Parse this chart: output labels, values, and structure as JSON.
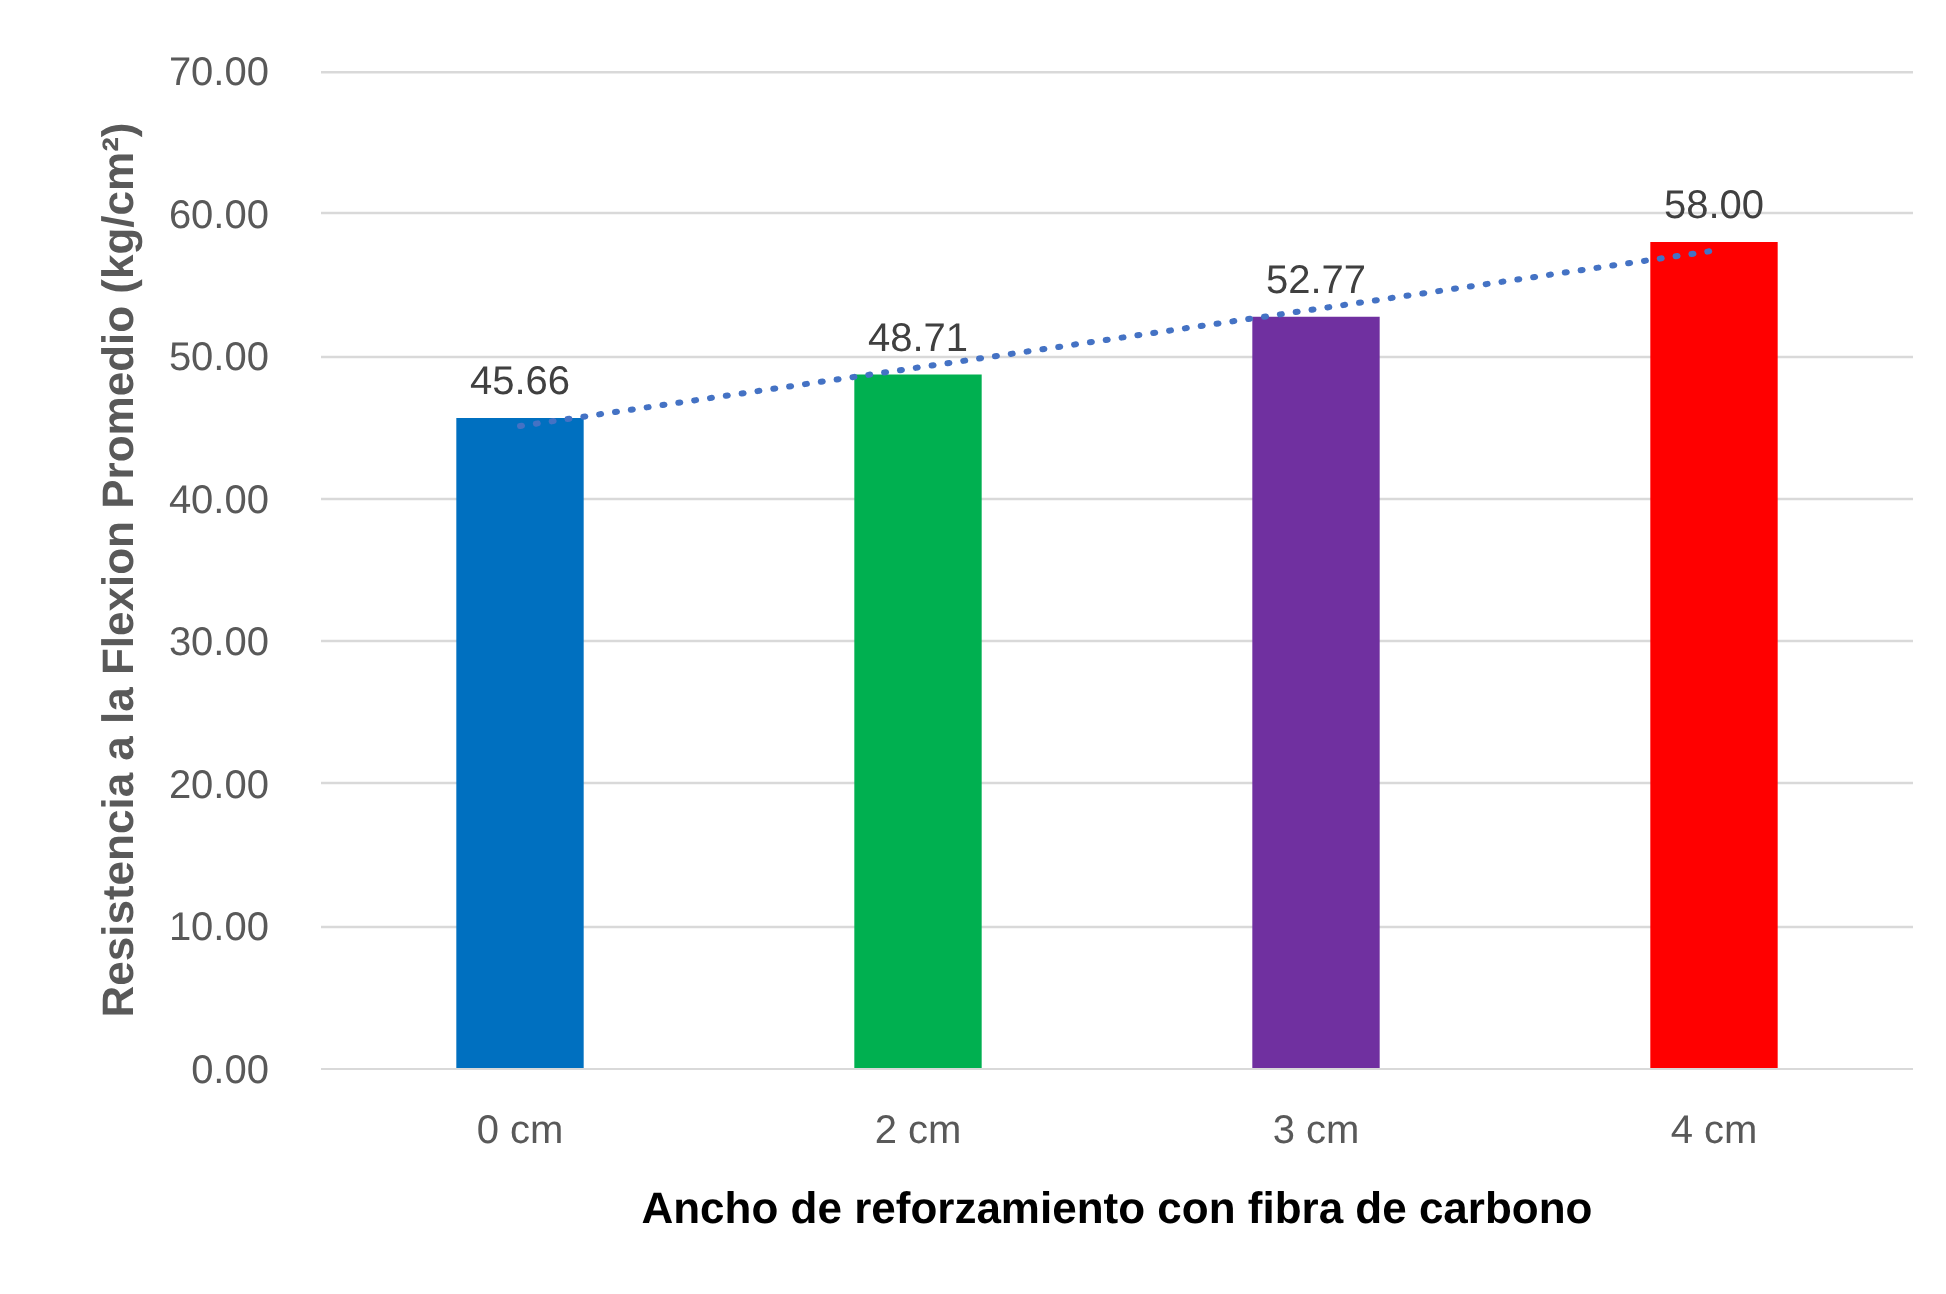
{
  "chart_data": {
    "type": "bar",
    "xlabel": "Ancho de reforzamiento con fibra de carbono",
    "ylabel": "Resistencia a la Flexion Promedio (kg/cm²)",
    "categories": [
      "0 cm",
      "2 cm",
      "3 cm",
      "4 cm"
    ],
    "series": [
      {
        "colors": [
          "#0070c0",
          "#00b050",
          "#7030a0",
          "#ff0000"
        ],
        "values": [
          45.66,
          48.71,
          52.77,
          58.0
        ],
        "value_labels": [
          "45.66",
          "48.71",
          "52.77",
          "58.00"
        ]
      },
      {
        "type": "line",
        "color": "#4472c4",
        "line_style": "dotted",
        "values": [
          45.1,
          49.2,
          53.3,
          57.4
        ]
      }
    ],
    "ylim": [
      0,
      70
    ],
    "yticks": [
      {
        "value": 0,
        "label": "0.00"
      },
      {
        "value": 10,
        "label": "10.00"
      },
      {
        "value": 20,
        "label": "20.00"
      },
      {
        "value": 30,
        "label": "30.00"
      },
      {
        "value": 40,
        "label": "40.00"
      },
      {
        "value": 50,
        "label": "50.00"
      },
      {
        "value": 60,
        "label": "60.00"
      },
      {
        "value": 70,
        "label": "70.00"
      }
    ],
    "grid": "y"
  }
}
